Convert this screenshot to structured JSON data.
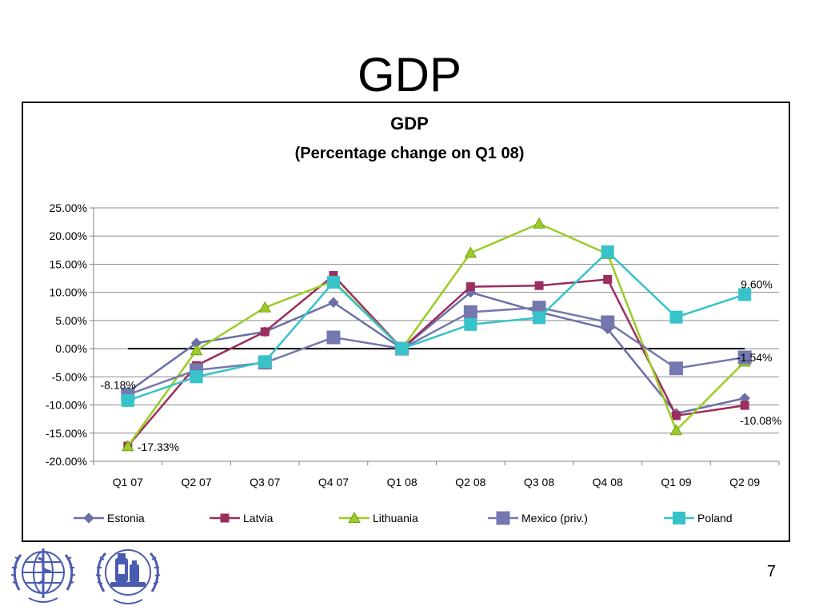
{
  "slide": {
    "title": "GDP",
    "page_number": "7"
  },
  "logos": [
    {
      "name": "WHO emblem",
      "description": "World Health Organization emblem"
    },
    {
      "name": "Pharmaceutical emblem",
      "description": "emblem with medicine bottles and laurel"
    }
  ],
  "colors": {
    "Estonia": "#6B6FA8",
    "Latvia": "#9B2E5E",
    "Lithuania": "#9ACD24",
    "Mexico (priv.)": "#7478AE",
    "Poland": "#36C3C9",
    "zero_line": "#000000",
    "grid": "#8C8C8C"
  },
  "chart_data": {
    "type": "line",
    "title": "GDP",
    "subtitle": "(Percentage change on Q1 08)",
    "xlabel": "",
    "ylabel": "",
    "categories": [
      "Q1 07",
      "Q2 07",
      "Q3 07",
      "Q4 07",
      "Q1 08",
      "Q2 08",
      "Q3 08",
      "Q4 08",
      "Q1 09",
      "Q2 09"
    ],
    "ylim": [
      -20,
      25
    ],
    "yticks": [
      -20,
      -15,
      -10,
      -5,
      0,
      5,
      10,
      15,
      20,
      25
    ],
    "ytick_labels": [
      "-20.00%",
      "-15.00%",
      "-10.00%",
      "-5.00%",
      "0.00%",
      "5.00%",
      "10.00%",
      "15.00%",
      "20.00%",
      "25.00%"
    ],
    "grid": true,
    "legend_position": "bottom",
    "series": [
      {
        "name": "Estonia",
        "marker": "diamond",
        "values": [
          -7.7,
          1.0,
          3.0,
          8.2,
          0.0,
          10.0,
          6.5,
          3.5,
          -11.5,
          -8.8
        ]
      },
      {
        "name": "Latvia",
        "marker": "square-small",
        "values": [
          -17.3,
          -3.0,
          3.0,
          13.0,
          0.0,
          11.0,
          11.2,
          12.3,
          -11.9,
          -10.08
        ]
      },
      {
        "name": "Lithuania",
        "marker": "triangle",
        "values": [
          -17.33,
          -0.3,
          7.3,
          12.0,
          0.0,
          17.0,
          22.2,
          16.8,
          -14.5,
          -2.3
        ]
      },
      {
        "name": "Mexico (priv.)",
        "marker": "square-large",
        "values": [
          -8.18,
          -3.8,
          -2.5,
          2.0,
          0.0,
          6.5,
          7.3,
          4.7,
          -3.5,
          -1.54
        ]
      },
      {
        "name": "Poland",
        "marker": "square",
        "values": [
          -9.2,
          -5.0,
          -2.3,
          11.8,
          0.0,
          4.3,
          5.5,
          17.2,
          5.6,
          9.6
        ]
      }
    ],
    "annotations": [
      {
        "text": "-8.18%",
        "series": "Mexico (priv.)",
        "category": "Q1 07",
        "anchor": "end"
      },
      {
        "text": "-17.33%",
        "series": "Lithuania",
        "category": "Q1 07",
        "anchor": "start"
      },
      {
        "text": "9.60%",
        "series": "Poland",
        "category": "Q2 09",
        "anchor": "start"
      },
      {
        "text": "-1.54%",
        "series": "Mexico (priv.)",
        "category": "Q2 09",
        "anchor": "start"
      },
      {
        "text": "-10.08%",
        "series": "Latvia",
        "category": "Q2 09",
        "anchor": "start"
      }
    ]
  }
}
